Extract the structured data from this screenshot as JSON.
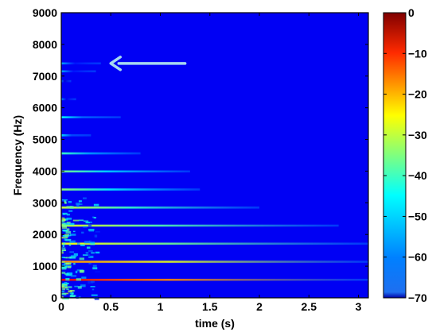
{
  "chart_data": {
    "type": "heatmap",
    "title": "",
    "xlabel": "time (s)",
    "ylabel": "Frequency (Hz)",
    "xlim": [
      0,
      3.1
    ],
    "ylim": [
      0,
      9000
    ],
    "x_ticks": [
      "0",
      "0.5",
      "1",
      "1.5",
      "2",
      "2.5",
      "3"
    ],
    "x_tick_values": [
      0,
      0.5,
      1,
      1.5,
      2,
      2.5,
      3
    ],
    "y_ticks": [
      "0",
      "1000",
      "2000",
      "3000",
      "4000",
      "5000",
      "6000",
      "7000",
      "8000",
      "9000"
    ],
    "y_tick_values": [
      0,
      1000,
      2000,
      3000,
      4000,
      5000,
      6000,
      7000,
      8000,
      9000
    ],
    "colorbar": {
      "range": [
        -70,
        0
      ],
      "ticks": [
        "0",
        "−10",
        "−20",
        "−30",
        "−40",
        "−50",
        "−60",
        "−70"
      ],
      "tick_values": [
        0,
        -10,
        -20,
        -30,
        -40,
        -50,
        -60,
        -70
      ],
      "colormap": "jet"
    },
    "background_level_db": -62,
    "harmonics": [
      {
        "freq_hz": 570,
        "decay_end_s": 3.1,
        "peak_db": -8
      },
      {
        "freq_hz": 1140,
        "decay_end_s": 3.1,
        "peak_db": -18
      },
      {
        "freq_hz": 1710,
        "decay_end_s": 3.1,
        "peak_db": -26
      },
      {
        "freq_hz": 2280,
        "decay_end_s": 2.8,
        "peak_db": -28
      },
      {
        "freq_hz": 2850,
        "decay_end_s": 2.0,
        "peak_db": -30
      },
      {
        "freq_hz": 3420,
        "decay_end_s": 1.4,
        "peak_db": -34
      },
      {
        "freq_hz": 3990,
        "decay_end_s": 1.3,
        "peak_db": -36
      },
      {
        "freq_hz": 4560,
        "decay_end_s": 0.8,
        "peak_db": -40
      },
      {
        "freq_hz": 5130,
        "decay_end_s": 0.3,
        "peak_db": -46
      },
      {
        "freq_hz": 5700,
        "decay_end_s": 0.6,
        "peak_db": -44
      },
      {
        "freq_hz": 6270,
        "decay_end_s": 0.15,
        "peak_db": -52
      },
      {
        "freq_hz": 6840,
        "decay_end_s": 0.1,
        "peak_db": -54
      },
      {
        "freq_hz": 7150,
        "decay_end_s": 0.35,
        "peak_db": -50
      },
      {
        "freq_hz": 7400,
        "decay_end_s": 0.4,
        "peak_db": -50
      }
    ],
    "annotation": {
      "type": "arrow",
      "from": [
        1.25,
        7400
      ],
      "to": [
        0.5,
        7400
      ],
      "color": "#a6d8f0"
    }
  }
}
